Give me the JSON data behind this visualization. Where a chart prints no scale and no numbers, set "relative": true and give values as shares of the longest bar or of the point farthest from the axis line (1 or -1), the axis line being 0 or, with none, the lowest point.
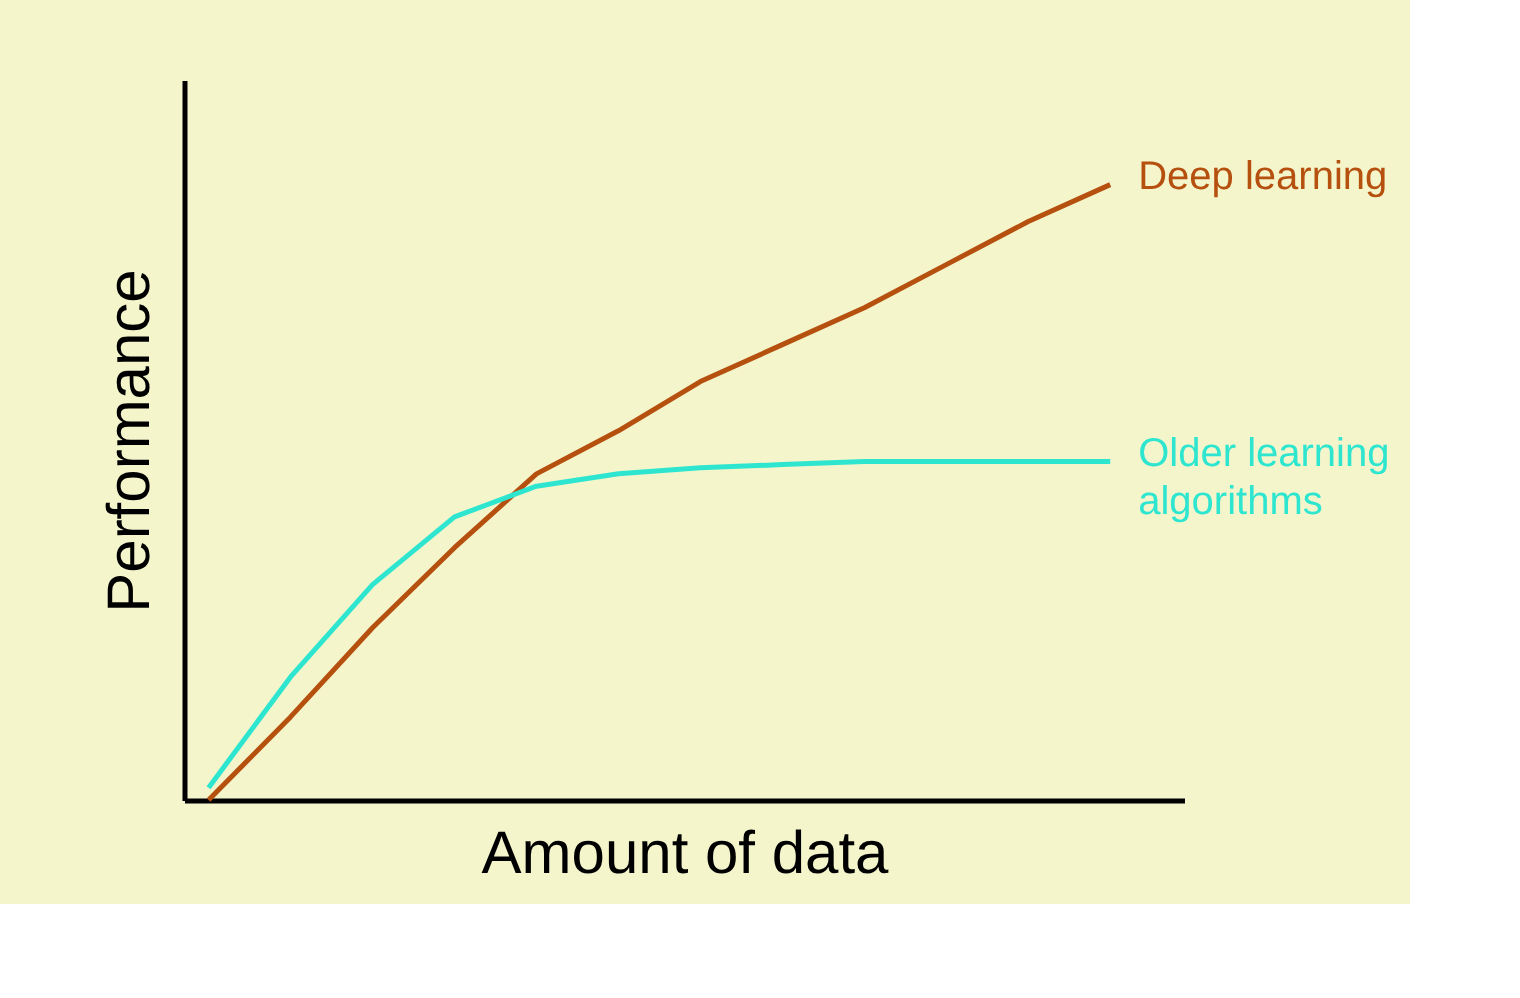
{
  "chart_data": {
    "type": "line",
    "relative": true,
    "xlabel": "Amount of data",
    "ylabel": "Performance",
    "categories": [
      null,
      null,
      null,
      null,
      null,
      null,
      null,
      null,
      null,
      null,
      null,
      null
    ],
    "series": [
      {
        "name": "Deep learning",
        "color": "#b5500f",
        "values": [
          0,
          0.135,
          0.28,
          0.41,
          0.53,
          0.6,
          0.68,
          0.74,
          0.8,
          0.87,
          0.94,
          1
        ]
      },
      {
        "name": "Older learning algorithms",
        "color": "#2ee6cf",
        "values": [
          0.02,
          0.2,
          0.35,
          0.46,
          0.51,
          0.53,
          0.54,
          0.545,
          0.55,
          0.55,
          0.55,
          0.55
        ]
      }
    ],
    "grid": false,
    "marker": "none",
    "line_style": "solid"
  }
}
